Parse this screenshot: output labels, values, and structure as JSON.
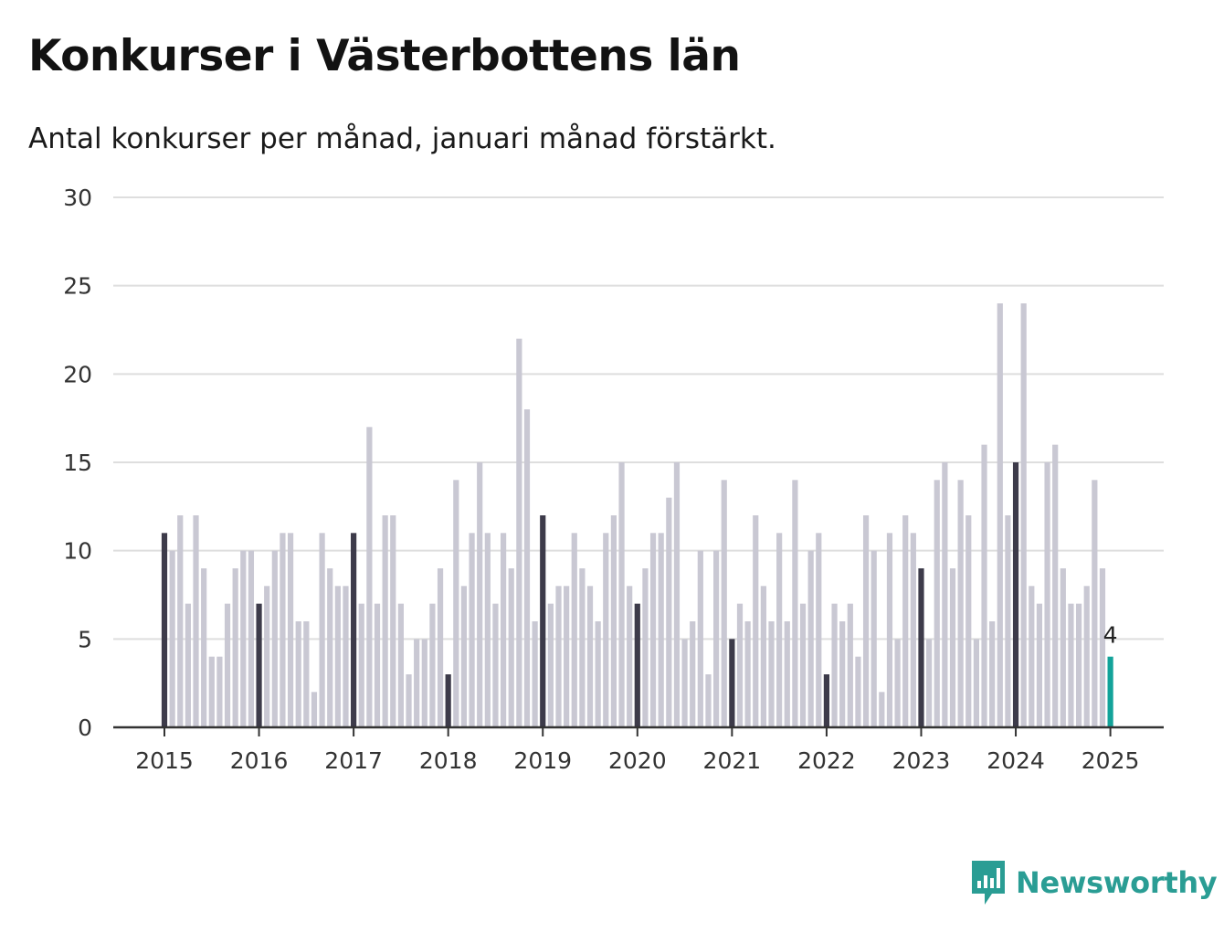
{
  "title": "Konkurser i Västerbottens län",
  "subtitle": "Antal konkurser per månad, januari månad förstärkt.",
  "brand": {
    "name": "Newsworthy",
    "icon": "newsworthy-logo-icon"
  },
  "colors": {
    "bar": "#c9c8d3",
    "january": "#3d3b4a",
    "latest": "#13a39a",
    "grid": "#dedede",
    "axis": "#333333"
  },
  "chart_data": {
    "type": "bar",
    "title": "Konkurser i Västerbottens län",
    "subtitle": "Antal konkurser per månad, januari månad förstärkt.",
    "xlabel": "",
    "ylabel": "",
    "ylim": [
      0,
      30
    ],
    "yticks": [
      0,
      5,
      10,
      15,
      20,
      25,
      30
    ],
    "xticks": [
      "2015",
      "2016",
      "2017",
      "2018",
      "2019",
      "2020",
      "2021",
      "2022",
      "2023",
      "2024",
      "2025"
    ],
    "start": "2015-01",
    "grid": true,
    "legend": "none",
    "highlight": "januari",
    "series": [
      {
        "year": "2015",
        "values": [
          11,
          10,
          12,
          7,
          12,
          9,
          4,
          4,
          7,
          9,
          10,
          10
        ]
      },
      {
        "year": "2016",
        "values": [
          7,
          8,
          10,
          11,
          11,
          6,
          6,
          2,
          11,
          9,
          8,
          8
        ]
      },
      {
        "year": "2017",
        "values": [
          11,
          7,
          17,
          7,
          12,
          12,
          7,
          3,
          5,
          5,
          7,
          9
        ]
      },
      {
        "year": "2018",
        "values": [
          3,
          14,
          8,
          11,
          15,
          11,
          7,
          11,
          9,
          22,
          18,
          6
        ]
      },
      {
        "year": "2019",
        "values": [
          12,
          7,
          8,
          8,
          11,
          9,
          8,
          6,
          11,
          12,
          15,
          8
        ]
      },
      {
        "year": "2020",
        "values": [
          7,
          9,
          11,
          11,
          13,
          15,
          5,
          6,
          10,
          3,
          10,
          14
        ]
      },
      {
        "year": "2021",
        "values": [
          5,
          7,
          6,
          12,
          8,
          6,
          11,
          6,
          14,
          7,
          10,
          11
        ]
      },
      {
        "year": "2022",
        "values": [
          3,
          7,
          6,
          7,
          4,
          12,
          10,
          2,
          11,
          5,
          12,
          11
        ]
      },
      {
        "year": "2023",
        "values": [
          9,
          5,
          14,
          15,
          9,
          14,
          12,
          5,
          16,
          6,
          24,
          12
        ]
      },
      {
        "year": "2024",
        "values": [
          15,
          24,
          8,
          7,
          15,
          16,
          9,
          7,
          7,
          8,
          14,
          9
        ]
      },
      {
        "year": "2025",
        "values": [
          4
        ]
      }
    ],
    "annotations": [
      {
        "month": "2025-01",
        "label": "4"
      }
    ]
  }
}
